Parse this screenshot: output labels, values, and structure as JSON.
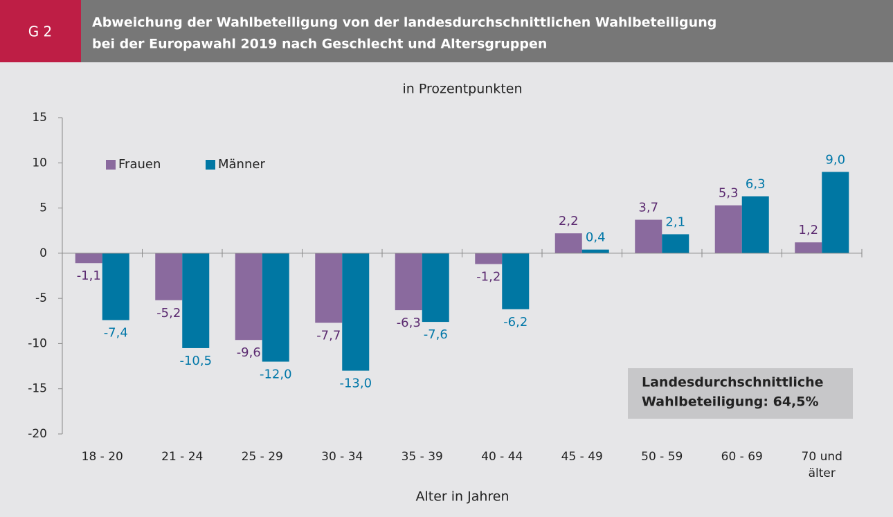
{
  "chart_data": {
    "type": "bar",
    "badge": "G 2",
    "title": [
      "Abweichung der Wahlbeteiligung von der landesdurchschnittlichen Wahlbeteiligung",
      "bei der Europawahl 2019 nach Geschlecht und Altersgruppen"
    ],
    "subtitle": "in Prozentpunkten",
    "x_label": "Alter in Jahren",
    "categories": [
      "18 - 20",
      "21 - 24",
      "25 - 29",
      "30 - 34",
      "35 - 39",
      "40 - 44",
      "45 - 49",
      "50 - 59",
      "60 - 69",
      "70 und älter"
    ],
    "series": [
      {
        "name": "Frauen",
        "color": "#8a6a9e",
        "label_color": "#5b2a70",
        "values": [
          -1.1,
          -5.2,
          -9.6,
          -7.7,
          -6.3,
          -1.2,
          2.2,
          3.7,
          5.3,
          1.2
        ],
        "value_labels": [
          "-1,1",
          "-5,2",
          "-9,6",
          "-7,7",
          "-6,3",
          "-1,2",
          "2,2",
          "3,7",
          "5,3",
          "1,2"
        ]
      },
      {
        "name": "Männer",
        "color": "#0077a3",
        "label_color": "#0077a8",
        "values": [
          -7.4,
          -10.5,
          -12.0,
          -13.0,
          -7.6,
          -6.2,
          0.4,
          2.1,
          6.3,
          9.0
        ],
        "value_labels": [
          "-7,4",
          "-10,5",
          "-12,0",
          "-13,0",
          "-7,6",
          "-6,2",
          "0,4",
          "2,1",
          "6,3",
          "9,0"
        ]
      }
    ],
    "ylim": [
      -20,
      15
    ],
    "yticks": [
      -20,
      -15,
      -10,
      -5,
      0,
      5,
      10,
      15
    ],
    "legend": "upper left",
    "annotation": [
      "Landesdurchschnittliche",
      "Wahlbeteiligung: 64,5%"
    ]
  }
}
